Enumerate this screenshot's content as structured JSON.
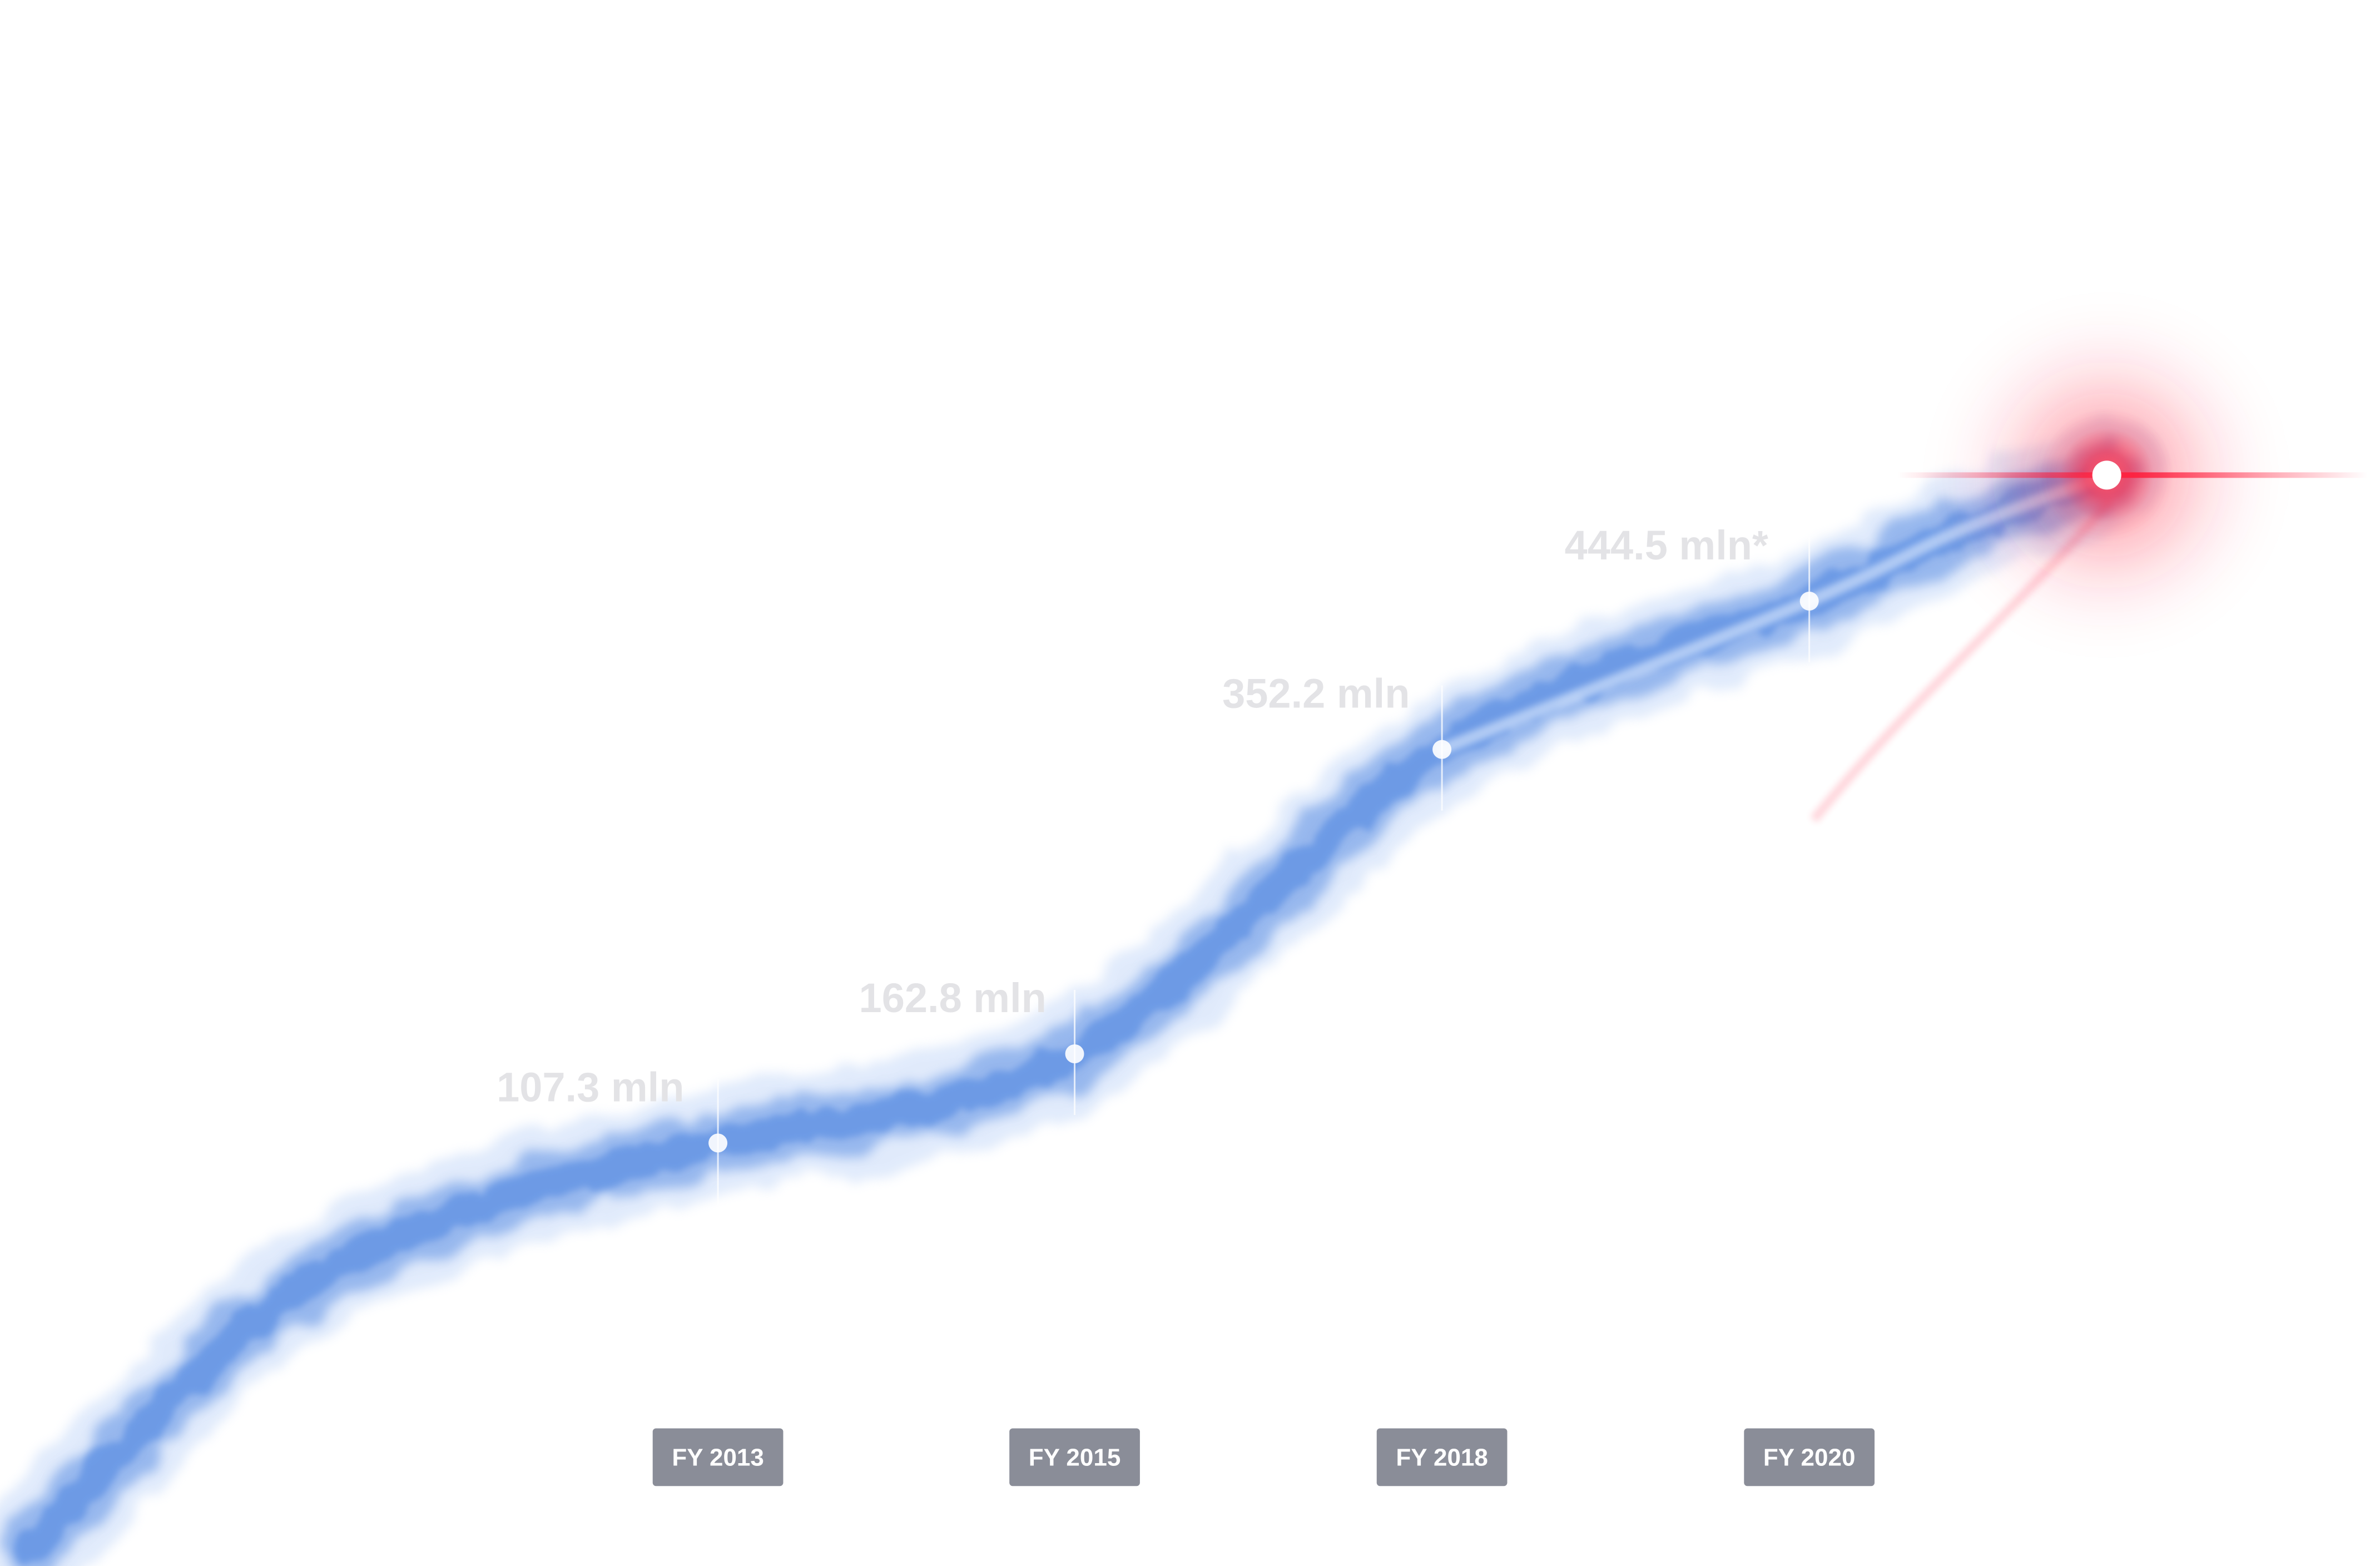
{
  "chart_data": {
    "type": "line",
    "title": "",
    "xlabel": "",
    "ylabel": "",
    "categories": [
      "FY 2013",
      "FY 2015",
      "FY 2018",
      "FY 2020"
    ],
    "series": [
      {
        "values": [
          107.3,
          162.8,
          352.2,
          444.5
        ],
        "labels": [
          "107.3 mln",
          "162.8 mln",
          "352.2 mln",
          "444.5 mln*"
        ]
      }
    ],
    "grid": false,
    "legend": "none",
    "colors": {
      "trail": "#5b8fe3",
      "trail_light": "#a9c6f5",
      "head_glow": "#ff1e3c",
      "label": "#e3e3e6",
      "badge": "#8a8d98",
      "badge_text": "#ffffff"
    }
  }
}
